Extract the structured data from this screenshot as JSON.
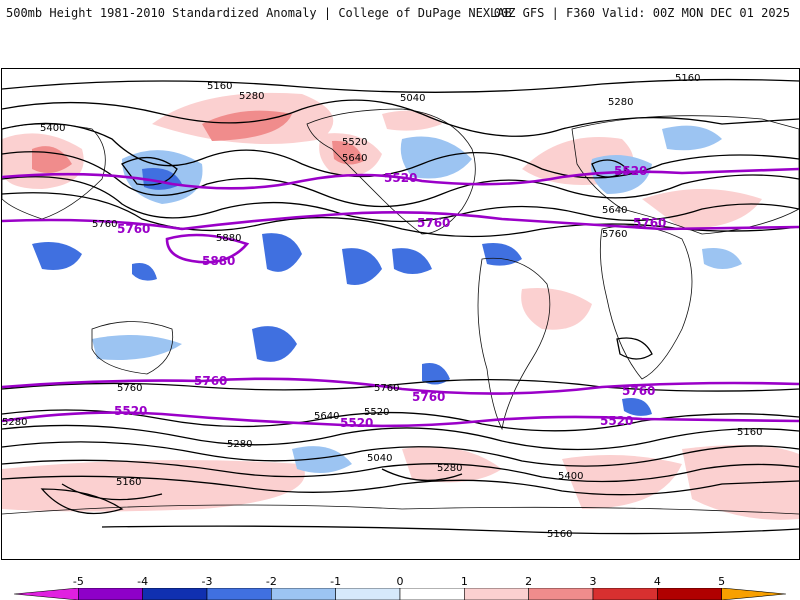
{
  "header": {
    "title_left": "500mb Height 1981-2010 Standardized Anomaly | College of DuPage NEXLAB",
    "title_right": "00Z GFS | F360 Valid: 00Z MON DEC 01 2025"
  },
  "map": {
    "contour_labels_black": [
      "5160",
      "5280",
      "5040",
      "5400",
      "5520",
      "5640",
      "5760",
      "5880"
    ],
    "contour_labels_purple": [
      "5520",
      "5760",
      "5880"
    ]
  },
  "legend": {
    "ticks": [
      "-5",
      "-4",
      "-3",
      "-2",
      "-1",
      "0",
      "1",
      "2",
      "3",
      "4",
      "5"
    ],
    "colors": [
      "#e020e0",
      "#8e00c8",
      "#1030b0",
      "#4070e0",
      "#9cc4f2",
      "#d6e9fb",
      "#ffffff",
      "#fbd0d0",
      "#f08c8c",
      "#d83030",
      "#b00000",
      "#f8a000"
    ]
  }
}
